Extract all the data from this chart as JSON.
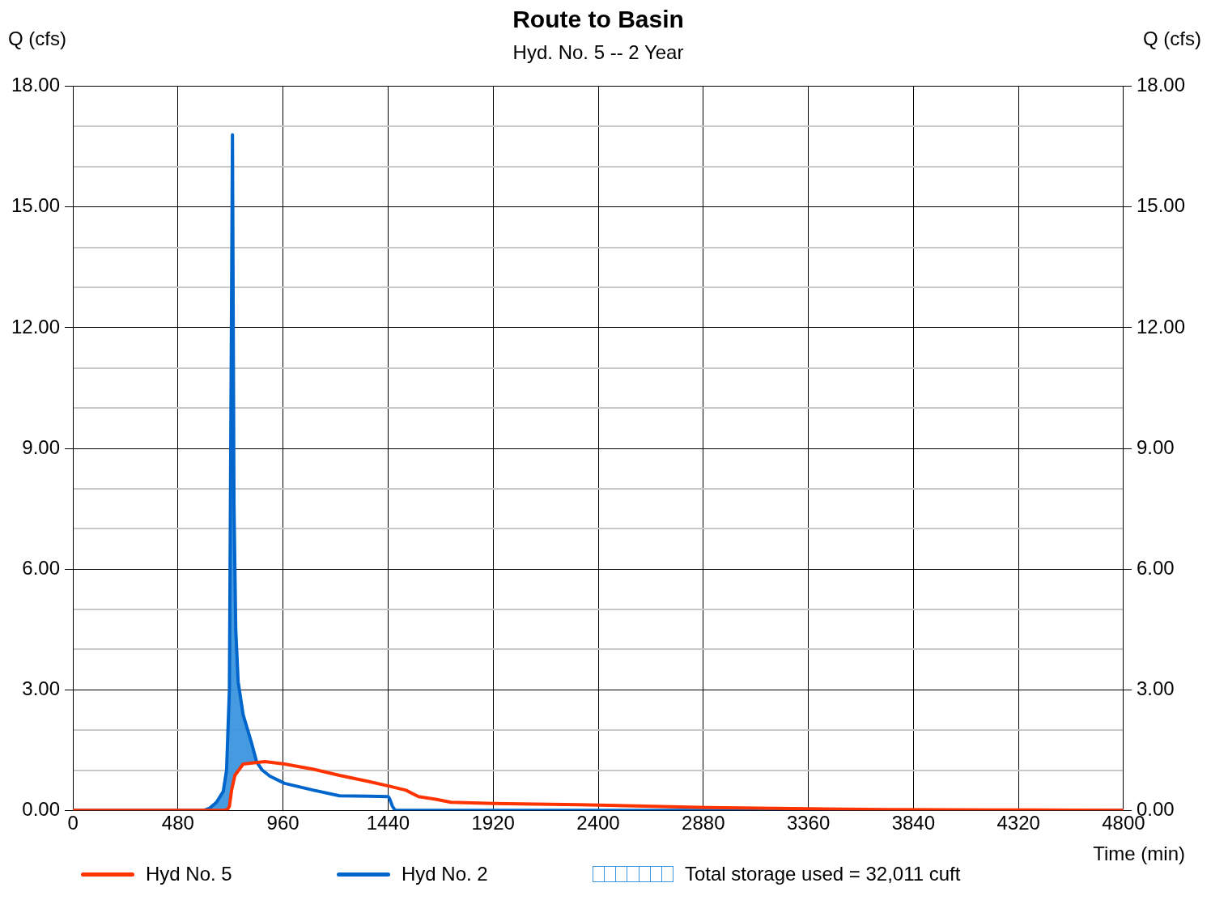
{
  "chart_data": {
    "type": "line",
    "title": "Route to Basin",
    "subtitle": "Hyd. No. 5 -- 2 Year",
    "xlabel": "Time (min)",
    "ylabel": "Q (cfs)",
    "y2label": "Q (cfs)",
    "xlim": [
      0,
      4800
    ],
    "xticks": [
      0,
      480,
      960,
      1440,
      1920,
      2400,
      2880,
      3360,
      3840,
      4320,
      4800
    ],
    "ylim": [
      0,
      18
    ],
    "yticks": [
      {
        "value": 0,
        "label": "0.00"
      },
      {
        "value": 1,
        "label": null
      },
      {
        "value": 2,
        "label": null
      },
      {
        "value": 3,
        "label": "3.00"
      },
      {
        "value": 4,
        "label": null
      },
      {
        "value": 5,
        "label": null
      },
      {
        "value": 6,
        "label": "6.00"
      },
      {
        "value": 7,
        "label": null
      },
      {
        "value": 8,
        "label": null
      },
      {
        "value": 9,
        "label": "9.00"
      },
      {
        "value": 10,
        "label": null
      },
      {
        "value": 11,
        "label": null
      },
      {
        "value": 12,
        "label": "12.00"
      },
      {
        "value": 13,
        "label": null
      },
      {
        "value": 14,
        "label": null
      },
      {
        "value": 15,
        "label": "15.00"
      },
      {
        "value": 16,
        "label": null
      },
      {
        "value": 17,
        "label": null
      },
      {
        "value": 18,
        "label": "18.00"
      }
    ],
    "y2lim": [
      0,
      18
    ],
    "y2ticks": [
      {
        "value": 0,
        "label": "0.00"
      },
      {
        "value": 3,
        "label": "3.00"
      },
      {
        "value": 6,
        "label": "6.00"
      },
      {
        "value": 9,
        "label": "9.00"
      },
      {
        "value": 12,
        "label": "12.00"
      },
      {
        "value": 15,
        "label": "15.00"
      },
      {
        "value": 18,
        "label": "18.00"
      }
    ],
    "grid": true,
    "legend": "bottom",
    "marker": "none",
    "line_style": "solid",
    "series": [
      {
        "name": "Hyd No. 5",
        "color": "#ff3300",
        "x": [
          0,
          690,
          706,
          715,
          725,
          740,
          778,
          877,
          967,
          1100,
          1218,
          1350,
          1446,
          1522,
          1579,
          1662,
          1727,
          1920,
          2311,
          2895,
          3360,
          3711,
          4200,
          4800
        ],
        "values": [
          0,
          0,
          0.02,
          0.1,
          0.5,
          0.87,
          1.15,
          1.21,
          1.15,
          1.02,
          0.87,
          0.72,
          0.6,
          0.5,
          0.34,
          0.27,
          0.2,
          0.17,
          0.14,
          0.07,
          0.04,
          0.02,
          0.01,
          0
        ]
      },
      {
        "name": "Hyd No. 2",
        "color": "#0066cc",
        "x": [
          0,
          600,
          626,
          656,
          687,
          702,
          715,
          729,
          736,
          744,
          755,
          778,
          816,
          839,
          865,
          900,
          967,
          1100,
          1218,
          1350,
          1440,
          1446,
          1460,
          1472,
          2400,
          3360,
          4800
        ],
        "values": [
          0,
          0,
          0.06,
          0.2,
          0.47,
          1.0,
          3.0,
          16.8,
          7.6,
          4.5,
          3.2,
          2.37,
          1.68,
          1.21,
          1.0,
          0.85,
          0.67,
          0.5,
          0.36,
          0.35,
          0.34,
          0.3,
          0.1,
          0,
          0,
          0,
          0
        ]
      }
    ],
    "annotations": [
      "Total storage used = 32,011 cuft"
    ]
  }
}
